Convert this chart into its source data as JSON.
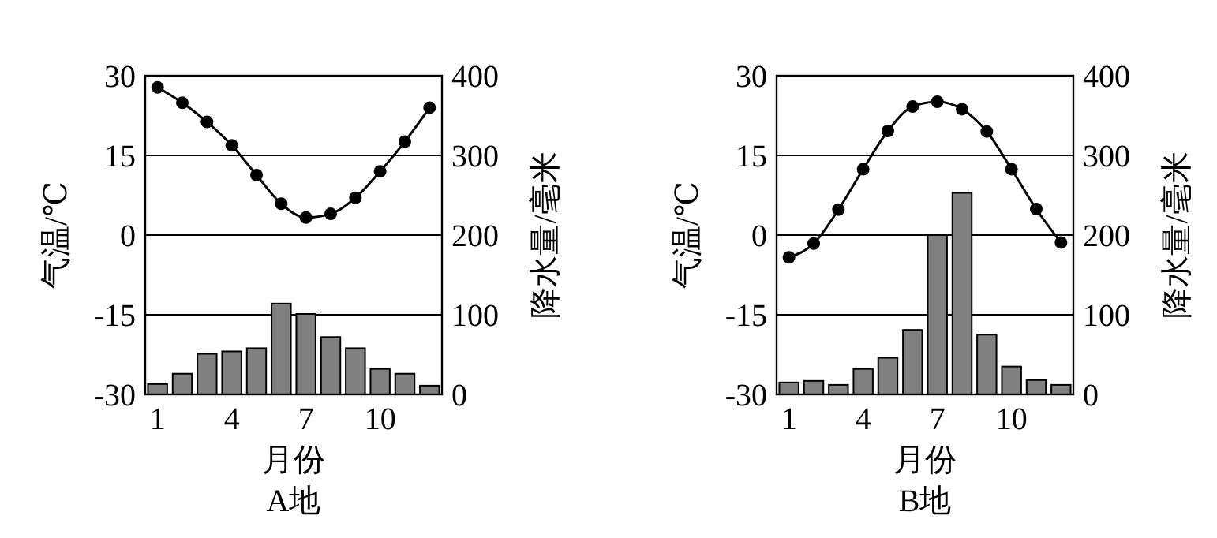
{
  "chart_data": [
    {
      "type": "bar",
      "title": "A地",
      "xlabel": "月份",
      "ylabel": "气温/℃",
      "y2label": "降水量/毫米",
      "x": [
        1,
        2,
        3,
        4,
        5,
        6,
        7,
        8,
        9,
        10,
        11,
        12
      ],
      "xlim": [
        0.5,
        12.5
      ],
      "xticks": [
        1,
        4,
        7,
        10
      ],
      "ylim": [
        -30,
        30
      ],
      "yticks": [
        -30,
        -15,
        0,
        15,
        30
      ],
      "y2lim": [
        0,
        400
      ],
      "y2ticks": [
        0,
        100,
        200,
        300,
        400
      ],
      "grid": "y",
      "marker": "circle",
      "series": [
        {
          "axis": "y2",
          "color": "#808080",
          "values": [
            13,
            26,
            51,
            54,
            58,
            114,
            101,
            72,
            58,
            32,
            26,
            11
          ]
        },
        {
          "type": "line",
          "axis": "y",
          "color": "#000000",
          "values": [
            27.8,
            24.9,
            21.3,
            16.9,
            11.3,
            5.9,
            3.3,
            4.0,
            7.0,
            12.0,
            17.6,
            24.0
          ]
        }
      ]
    },
    {
      "type": "bar",
      "title": "B地",
      "xlabel": "月份",
      "ylabel": "气温/℃",
      "y2label": "降水量/毫米",
      "x": [
        1,
        2,
        3,
        4,
        5,
        6,
        7,
        8,
        9,
        10,
        11,
        12
      ],
      "xlim": [
        0.5,
        12.5
      ],
      "xticks": [
        1,
        4,
        7,
        10
      ],
      "ylim": [
        -30,
        30
      ],
      "yticks": [
        -30,
        -15,
        0,
        15,
        30
      ],
      "y2lim": [
        0,
        400
      ],
      "y2ticks": [
        0,
        100,
        200,
        300,
        400
      ],
      "grid": "y",
      "marker": "circle",
      "series": [
        {
          "axis": "y2",
          "color": "#808080",
          "values": [
            15,
            17,
            12,
            32,
            46,
            81,
            200,
            253,
            75,
            35,
            18,
            12
          ]
        },
        {
          "type": "line",
          "axis": "y",
          "color": "#000000",
          "values": [
            -4.2,
            -1.6,
            4.8,
            12.4,
            19.6,
            24.2,
            25.1,
            23.7,
            19.5,
            12.4,
            4.9,
            -1.4
          ]
        }
      ]
    }
  ]
}
